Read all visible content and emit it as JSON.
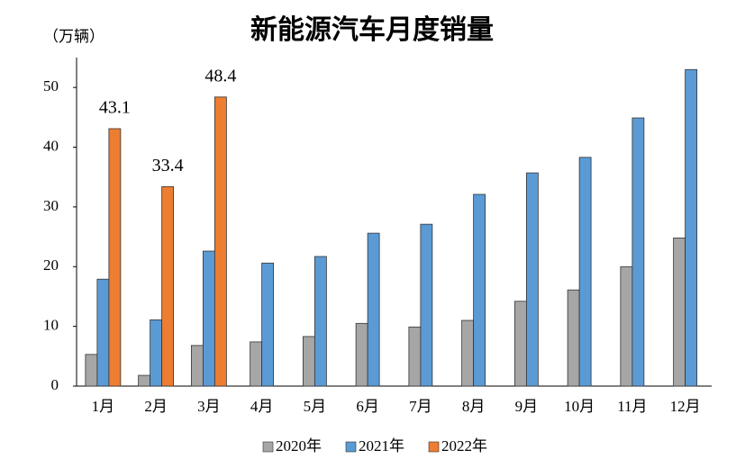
{
  "chart_data": {
    "type": "bar",
    "title": "新能源汽车月度销量",
    "y_label": "（万辆）",
    "categories": [
      "1月",
      "2月",
      "3月",
      "4月",
      "5月",
      "6月",
      "7月",
      "8月",
      "9月",
      "10月",
      "11月",
      "12月"
    ],
    "series": [
      {
        "name": "2020年",
        "color": "#a6a6a6",
        "values": [
          5.3,
          1.8,
          6.8,
          7.4,
          8.3,
          10.5,
          9.9,
          11.0,
          14.2,
          16.1,
          20.0,
          24.8
        ]
      },
      {
        "name": "2021年",
        "color": "#5b9bd5",
        "values": [
          17.9,
          11.1,
          22.6,
          20.6,
          21.7,
          25.6,
          27.1,
          32.1,
          35.7,
          38.3,
          44.9,
          53.0
        ]
      },
      {
        "name": "2022年",
        "color": "#ed7d31",
        "values": [
          43.1,
          33.4,
          48.4,
          null,
          null,
          null,
          null,
          null,
          null,
          null,
          null,
          null
        ],
        "data_labels": true
      }
    ],
    "ylim": [
      0,
      55
    ],
    "yticks": [
      0,
      10,
      20,
      30,
      40,
      50
    ],
    "grid": false,
    "legend": "bottom"
  }
}
